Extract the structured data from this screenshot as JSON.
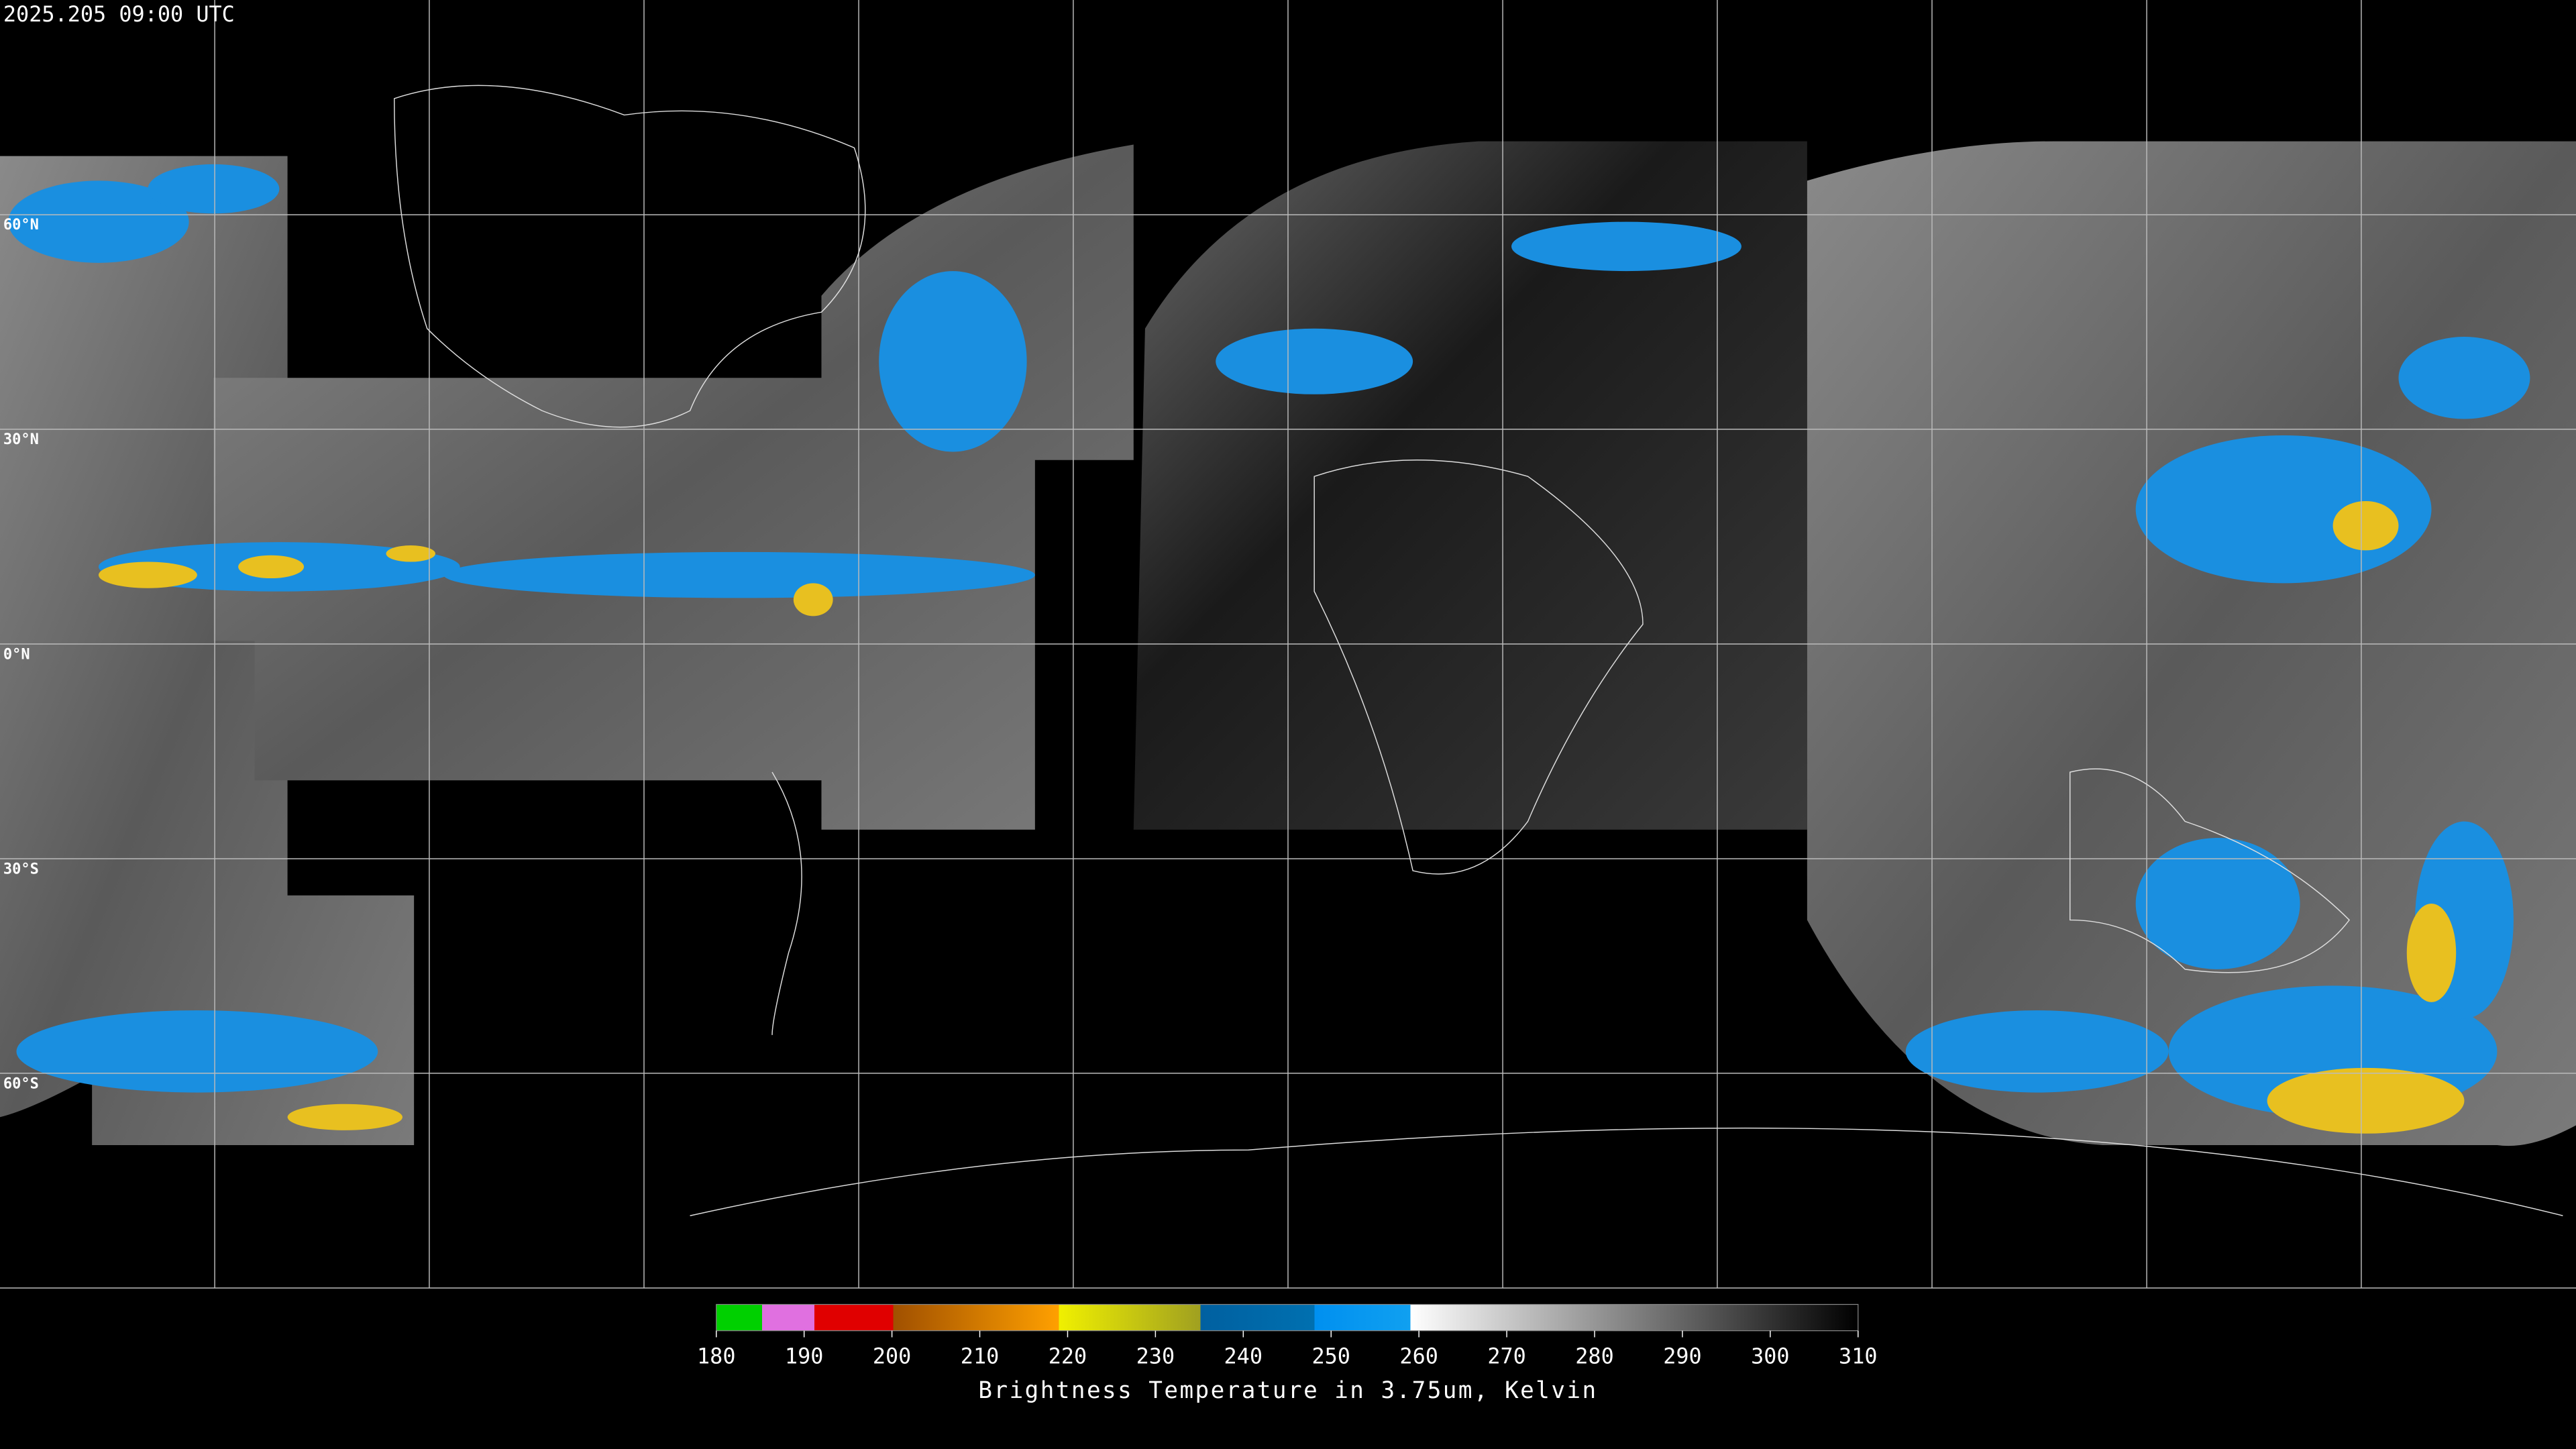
{
  "header": {
    "timestamp": "2025.205 09:00 UTC"
  },
  "map": {
    "lat_labels": [
      "60°N",
      "30°N",
      "0°N",
      "30°S",
      "60°S"
    ]
  },
  "colorbar": {
    "ticks": [
      180,
      190,
      200,
      210,
      220,
      230,
      240,
      250,
      260,
      270,
      280,
      290,
      300,
      310
    ],
    "label": "Brightness Temperature in 3.75um, Kelvin"
  }
}
